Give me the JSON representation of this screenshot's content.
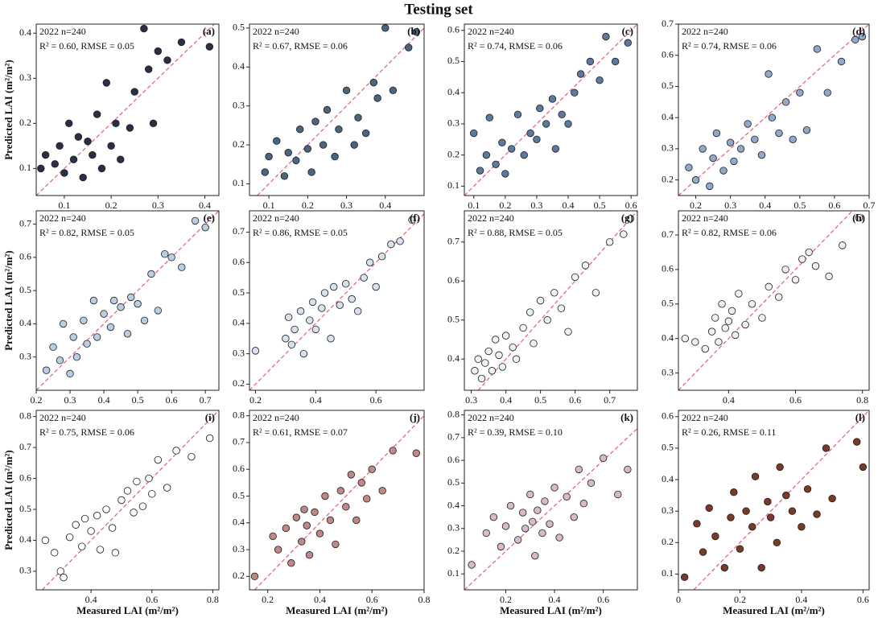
{
  "title": "Testing set",
  "x_label": "Measured LAI (m²/m²)",
  "y_label": "Predicted LAI (m²/m²)",
  "chart_data": [
    {
      "type": "scatter",
      "panel_label": "(a)",
      "annotations": [
        "2022 n=240",
        "R² = 0.60, RMSE = 0.05"
      ],
      "color": "#2a2f45",
      "line_color": "#e06a8a",
      "xlim": [
        0.04,
        0.43
      ],
      "xticks": [
        0.1,
        0.2,
        0.3,
        0.4
      ],
      "ylim": [
        0.04,
        0.42
      ],
      "yticks": [
        0.1,
        0.2,
        0.3,
        0.4
      ],
      "x": [
        0.05,
        0.06,
        0.08,
        0.09,
        0.1,
        0.11,
        0.12,
        0.13,
        0.14,
        0.15,
        0.16,
        0.17,
        0.18,
        0.19,
        0.2,
        0.21,
        0.22,
        0.24,
        0.25,
        0.27,
        0.28,
        0.29,
        0.3,
        0.32,
        0.35,
        0.41
      ],
      "y": [
        0.1,
        0.13,
        0.11,
        0.15,
        0.09,
        0.2,
        0.12,
        0.17,
        0.08,
        0.16,
        0.13,
        0.22,
        0.1,
        0.29,
        0.15,
        0.2,
        0.12,
        0.19,
        0.27,
        0.41,
        0.32,
        0.2,
        0.36,
        0.34,
        0.38,
        0.37
      ]
    },
    {
      "type": "scatter",
      "panel_label": "(b)",
      "annotations": [
        "2022 n=240",
        "R² = 0.67, RMSE = 0.06"
      ],
      "color": "#4a6580",
      "line_color": "#e06a8a",
      "xlim": [
        0.05,
        0.5
      ],
      "xticks": [
        0.1,
        0.2,
        0.3,
        0.4
      ],
      "ylim": [
        0.07,
        0.51
      ],
      "yticks": [
        0.1,
        0.2,
        0.3,
        0.4,
        0.5
      ],
      "x": [
        0.09,
        0.1,
        0.12,
        0.14,
        0.15,
        0.17,
        0.18,
        0.2,
        0.21,
        0.22,
        0.24,
        0.25,
        0.27,
        0.28,
        0.3,
        0.32,
        0.33,
        0.35,
        0.37,
        0.38,
        0.4,
        0.42,
        0.46,
        0.48
      ],
      "y": [
        0.13,
        0.17,
        0.21,
        0.12,
        0.18,
        0.16,
        0.24,
        0.19,
        0.13,
        0.26,
        0.2,
        0.29,
        0.17,
        0.24,
        0.34,
        0.2,
        0.27,
        0.23,
        0.36,
        0.32,
        0.5,
        0.34,
        0.45,
        0.49
      ]
    },
    {
      "type": "scatter",
      "panel_label": "(c)",
      "annotations": [
        "2022 n=240",
        "R² = 0.74, RMSE = 0.06"
      ],
      "color": "#5b7a9e",
      "line_color": "#e06a8a",
      "xlim": [
        0.07,
        0.62
      ],
      "xticks": [
        0.1,
        0.2,
        0.3,
        0.4,
        0.5,
        0.6
      ],
      "ylim": [
        0.07,
        0.62
      ],
      "yticks": [
        0.1,
        0.2,
        0.3,
        0.4,
        0.5,
        0.6
      ],
      "x": [
        0.1,
        0.12,
        0.14,
        0.15,
        0.17,
        0.19,
        0.2,
        0.22,
        0.24,
        0.26,
        0.28,
        0.3,
        0.31,
        0.33,
        0.35,
        0.36,
        0.38,
        0.4,
        0.42,
        0.44,
        0.47,
        0.5,
        0.52,
        0.55,
        0.59
      ],
      "y": [
        0.27,
        0.15,
        0.2,
        0.32,
        0.17,
        0.24,
        0.14,
        0.22,
        0.33,
        0.2,
        0.27,
        0.25,
        0.35,
        0.3,
        0.38,
        0.22,
        0.33,
        0.3,
        0.4,
        0.46,
        0.5,
        0.44,
        0.58,
        0.5,
        0.56
      ]
    },
    {
      "type": "scatter",
      "panel_label": "(d)",
      "annotations": [
        "2022 n=240",
        "R² = 0.74, RMSE = 0.06"
      ],
      "color": "#8fa9c9",
      "line_color": "#e06a8a",
      "xlim": [
        0.15,
        0.7
      ],
      "xticks": [
        0.2,
        0.3,
        0.4,
        0.5,
        0.6,
        0.7
      ],
      "ylim": [
        0.15,
        0.7
      ],
      "yticks": [
        0.2,
        0.3,
        0.4,
        0.5,
        0.6,
        0.7
      ],
      "x": [
        0.18,
        0.2,
        0.22,
        0.24,
        0.25,
        0.26,
        0.28,
        0.3,
        0.31,
        0.33,
        0.35,
        0.37,
        0.39,
        0.41,
        0.42,
        0.44,
        0.46,
        0.48,
        0.5,
        0.52,
        0.55,
        0.58,
        0.62,
        0.66,
        0.68
      ],
      "y": [
        0.24,
        0.2,
        0.3,
        0.18,
        0.27,
        0.35,
        0.23,
        0.32,
        0.26,
        0.3,
        0.38,
        0.33,
        0.28,
        0.54,
        0.4,
        0.35,
        0.45,
        0.33,
        0.48,
        0.36,
        0.62,
        0.48,
        0.58,
        0.65,
        0.66
      ]
    },
    {
      "type": "scatter",
      "panel_label": "(e)",
      "annotations": [
        "2022 n=240",
        "R² = 0.82, RMSE = 0.05"
      ],
      "color": "#b9cde3",
      "line_color": "#e06a8a",
      "xlim": [
        0.2,
        0.74
      ],
      "xticks": [
        0.2,
        0.3,
        0.4,
        0.5,
        0.6,
        0.7
      ],
      "ylim": [
        0.2,
        0.74
      ],
      "yticks": [
        0.3,
        0.4,
        0.5,
        0.6,
        0.7
      ],
      "x": [
        0.23,
        0.25,
        0.27,
        0.28,
        0.3,
        0.31,
        0.32,
        0.34,
        0.35,
        0.37,
        0.38,
        0.4,
        0.42,
        0.43,
        0.45,
        0.47,
        0.48,
        0.5,
        0.52,
        0.54,
        0.56,
        0.58,
        0.6,
        0.63,
        0.67,
        0.7
      ],
      "y": [
        0.26,
        0.33,
        0.29,
        0.4,
        0.25,
        0.36,
        0.3,
        0.41,
        0.34,
        0.47,
        0.36,
        0.43,
        0.39,
        0.47,
        0.45,
        0.37,
        0.48,
        0.46,
        0.41,
        0.55,
        0.44,
        0.61,
        0.6,
        0.57,
        0.71,
        0.69
      ]
    },
    {
      "type": "scatter",
      "panel_label": "(f)",
      "annotations": [
        "2022 n=240",
        "R² = 0.86, RMSE = 0.05"
      ],
      "color": "#d7e2ee",
      "line_color": "#e06a8a",
      "xlim": [
        0.18,
        0.76
      ],
      "xticks": [
        0.2,
        0.4,
        0.6
      ],
      "ylim": [
        0.18,
        0.77
      ],
      "yticks": [
        0.2,
        0.3,
        0.4,
        0.5,
        0.6,
        0.7
      ],
      "x": [
        0.2,
        0.3,
        0.31,
        0.32,
        0.33,
        0.35,
        0.36,
        0.38,
        0.39,
        0.4,
        0.42,
        0.43,
        0.45,
        0.46,
        0.48,
        0.5,
        0.52,
        0.54,
        0.56,
        0.58,
        0.6,
        0.62,
        0.65,
        0.68,
        0.72
      ],
      "y": [
        0.31,
        0.35,
        0.42,
        0.33,
        0.38,
        0.44,
        0.3,
        0.41,
        0.47,
        0.38,
        0.45,
        0.5,
        0.35,
        0.52,
        0.46,
        0.53,
        0.48,
        0.44,
        0.55,
        0.6,
        0.52,
        0.62,
        0.66,
        0.67,
        0.74
      ]
    },
    {
      "type": "scatter",
      "panel_label": "(g)",
      "annotations": [
        "2022 n=240",
        "R² = 0.88, RMSE = 0.05"
      ],
      "color": "#eef2f6",
      "line_color": "#e06a8a",
      "xlim": [
        0.28,
        0.78
      ],
      "xticks": [
        0.3,
        0.4,
        0.5,
        0.6,
        0.7
      ],
      "ylim": [
        0.32,
        0.78
      ],
      "yticks": [
        0.4,
        0.5,
        0.6,
        0.7
      ],
      "x": [
        0.31,
        0.32,
        0.33,
        0.34,
        0.35,
        0.36,
        0.37,
        0.38,
        0.39,
        0.4,
        0.42,
        0.43,
        0.45,
        0.47,
        0.48,
        0.5,
        0.52,
        0.54,
        0.56,
        0.58,
        0.6,
        0.63,
        0.66,
        0.7,
        0.74,
        0.76
      ],
      "y": [
        0.37,
        0.4,
        0.35,
        0.39,
        0.42,
        0.37,
        0.45,
        0.41,
        0.38,
        0.46,
        0.43,
        0.4,
        0.48,
        0.52,
        0.44,
        0.55,
        0.5,
        0.57,
        0.53,
        0.47,
        0.61,
        0.64,
        0.57,
        0.7,
        0.72,
        0.76
      ]
    },
    {
      "type": "scatter",
      "panel_label": "(h)",
      "annotations": [
        "2022 n=240",
        "R² = 0.82, RMSE = 0.06"
      ],
      "color": "#f4eeee",
      "line_color": "#e06a8a",
      "xlim": [
        0.25,
        0.82
      ],
      "xticks": [
        0.4,
        0.6,
        0.8
      ],
      "ylim": [
        0.25,
        0.77
      ],
      "yticks": [
        0.3,
        0.4,
        0.5,
        0.6,
        0.7
      ],
      "x": [
        0.27,
        0.3,
        0.33,
        0.35,
        0.36,
        0.37,
        0.38,
        0.39,
        0.4,
        0.41,
        0.42,
        0.43,
        0.45,
        0.47,
        0.5,
        0.52,
        0.55,
        0.57,
        0.6,
        0.62,
        0.64,
        0.66,
        0.7,
        0.74,
        0.79
      ],
      "y": [
        0.4,
        0.39,
        0.37,
        0.42,
        0.46,
        0.39,
        0.5,
        0.43,
        0.45,
        0.48,
        0.41,
        0.53,
        0.44,
        0.5,
        0.46,
        0.55,
        0.52,
        0.6,
        0.57,
        0.63,
        0.65,
        0.61,
        0.58,
        0.67,
        0.75
      ]
    },
    {
      "type": "scatter",
      "panel_label": "(i)",
      "annotations": [
        "2022 n=240",
        "R² = 0.75, RMSE = 0.06"
      ],
      "color": "#ffffff",
      "line_color": "#e06a8a",
      "xlim": [
        0.22,
        0.82
      ],
      "xticks": [
        0.4,
        0.6,
        0.8
      ],
      "ylim": [
        0.24,
        0.82
      ],
      "yticks": [
        0.3,
        0.4,
        0.5,
        0.6,
        0.7,
        0.8
      ],
      "x": [
        0.25,
        0.28,
        0.3,
        0.31,
        0.33,
        0.35,
        0.37,
        0.38,
        0.4,
        0.42,
        0.43,
        0.45,
        0.47,
        0.48,
        0.5,
        0.52,
        0.54,
        0.55,
        0.57,
        0.59,
        0.6,
        0.62,
        0.65,
        0.68,
        0.73,
        0.79
      ],
      "y": [
        0.4,
        0.36,
        0.3,
        0.28,
        0.41,
        0.45,
        0.38,
        0.47,
        0.43,
        0.48,
        0.37,
        0.5,
        0.44,
        0.36,
        0.53,
        0.56,
        0.49,
        0.59,
        0.51,
        0.6,
        0.55,
        0.66,
        0.57,
        0.69,
        0.67,
        0.73
      ]
    },
    {
      "type": "scatter",
      "panel_label": "(j)",
      "annotations": [
        "2022 n=240",
        "R² = 0.61, RMSE = 0.07"
      ],
      "color": "#c08888",
      "line_color": "#e06a8a",
      "xlim": [
        0.13,
        0.8
      ],
      "xticks": [
        0.2,
        0.4,
        0.6,
        0.8
      ],
      "ylim": [
        0.15,
        0.82
      ],
      "yticks": [
        0.2,
        0.3,
        0.4,
        0.5,
        0.6,
        0.7,
        0.8
      ],
      "x": [
        0.15,
        0.22,
        0.24,
        0.27,
        0.29,
        0.31,
        0.33,
        0.34,
        0.35,
        0.36,
        0.38,
        0.4,
        0.42,
        0.44,
        0.46,
        0.48,
        0.5,
        0.52,
        0.54,
        0.56,
        0.58,
        0.6,
        0.64,
        0.68,
        0.77
      ],
      "y": [
        0.2,
        0.35,
        0.3,
        0.38,
        0.25,
        0.42,
        0.33,
        0.45,
        0.39,
        0.28,
        0.44,
        0.36,
        0.5,
        0.41,
        0.32,
        0.52,
        0.46,
        0.58,
        0.41,
        0.55,
        0.49,
        0.6,
        0.52,
        0.67,
        0.66
      ]
    },
    {
      "type": "scatter",
      "panel_label": "(k)",
      "annotations": [
        "2022 n=240",
        "R² = 0.39, RMSE = 0.10"
      ],
      "color": "#d7b8cc",
      "line_color": "#e06a8a",
      "xlim": [
        0.03,
        0.74
      ],
      "xticks": [
        0.2,
        0.4,
        0.6
      ],
      "ylim": [
        0.03,
        0.82
      ],
      "yticks": [
        0.1,
        0.2,
        0.3,
        0.4,
        0.5,
        0.6,
        0.7,
        0.8
      ],
      "x": [
        0.06,
        0.12,
        0.15,
        0.18,
        0.2,
        0.22,
        0.25,
        0.27,
        0.28,
        0.3,
        0.31,
        0.32,
        0.33,
        0.35,
        0.36,
        0.38,
        0.4,
        0.42,
        0.45,
        0.48,
        0.5,
        0.52,
        0.55,
        0.6,
        0.66,
        0.7
      ],
      "y": [
        0.14,
        0.28,
        0.35,
        0.22,
        0.31,
        0.4,
        0.25,
        0.37,
        0.3,
        0.45,
        0.33,
        0.18,
        0.38,
        0.28,
        0.42,
        0.32,
        0.48,
        0.26,
        0.44,
        0.35,
        0.56,
        0.41,
        0.5,
        0.61,
        0.45,
        0.56
      ]
    },
    {
      "type": "scatter",
      "panel_label": "(l)",
      "annotations": [
        "2022 n=240",
        "R² = 0.26, RMSE = 0.11"
      ],
      "color": "#7a3a28",
      "line_color": "#e06a8a",
      "xlim": [
        0,
        0.62
      ],
      "xticks": [
        0,
        0.2,
        0.4,
        0.6
      ],
      "ylim": [
        0.05,
        0.62
      ],
      "yticks": [
        0.1,
        0.2,
        0.3,
        0.4,
        0.5,
        0.6
      ],
      "x": [
        0.02,
        0.06,
        0.08,
        0.1,
        0.12,
        0.15,
        0.17,
        0.18,
        0.2,
        0.22,
        0.24,
        0.25,
        0.27,
        0.29,
        0.3,
        0.32,
        0.33,
        0.35,
        0.37,
        0.4,
        0.42,
        0.45,
        0.48,
        0.5,
        0.58,
        0.6
      ],
      "y": [
        0.09,
        0.26,
        0.17,
        0.31,
        0.22,
        0.12,
        0.28,
        0.36,
        0.18,
        0.3,
        0.25,
        0.41,
        0.12,
        0.33,
        0.28,
        0.2,
        0.44,
        0.35,
        0.3,
        0.25,
        0.37,
        0.29,
        0.5,
        0.34,
        0.52,
        0.44
      ]
    }
  ]
}
